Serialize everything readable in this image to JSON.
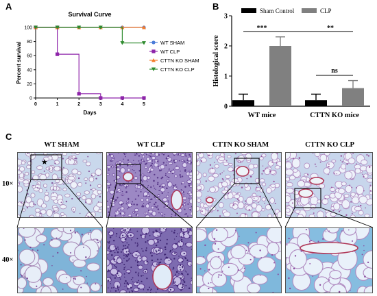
{
  "panels": {
    "a": "A",
    "b": "B",
    "c": "C"
  },
  "chart_data": [
    {
      "type": "line",
      "title": "Survival Curve",
      "xlabel": "Days",
      "ylabel": "Percent survival",
      "xlim": [
        0,
        5
      ],
      "ylim": [
        0,
        100
      ],
      "xticks": [
        "0",
        "1",
        "2",
        "3",
        "4",
        "5"
      ],
      "yticks": [
        "0",
        "20",
        "40",
        "60",
        "80",
        "100"
      ],
      "grid": false,
      "legend_position": "right",
      "step": true,
      "series": [
        {
          "name": "WT SHAM",
          "color": "#4a7bd8",
          "marker": "circle",
          "x": [
            1,
            2,
            3,
            4,
            5
          ],
          "y": [
            100,
            100,
            100,
            100,
            100
          ]
        },
        {
          "name": "WT CLP",
          "color": "#8e24aa",
          "marker": "square",
          "x": [
            1,
            1,
            2,
            3,
            4,
            5
          ],
          "y": [
            100,
            62,
            6,
            0,
            0,
            0
          ]
        },
        {
          "name": "CTTN KO SHAM",
          "color": "#f57c2a",
          "marker": "triangle-up",
          "x": [
            1,
            2,
            3,
            4,
            5
          ],
          "y": [
            100,
            100,
            100,
            100,
            100
          ]
        },
        {
          "name": "CTTN KO CLP",
          "color": "#2e8b2e",
          "marker": "triangle-down",
          "x": [
            1,
            2,
            3,
            4,
            5
          ],
          "y": [
            100,
            100,
            100,
            78,
            78
          ]
        }
      ]
    },
    {
      "type": "bar",
      "ylabel": "Histological score",
      "xlabel": "",
      "ylim": [
        0,
        3
      ],
      "yticks": [
        "0",
        "1",
        "2",
        "3"
      ],
      "categories": [
        "WT mice",
        "CTTN KO mice"
      ],
      "legend_position": "top",
      "series": [
        {
          "name": "Sham Control",
          "color": "#000000",
          "values": [
            0.2,
            0.2
          ],
          "errors": [
            0.2,
            0.2
          ]
        },
        {
          "name": "CLP",
          "color": "#808080",
          "values": [
            2.0,
            0.6
          ],
          "errors": [
            0.3,
            0.25
          ]
        }
      ],
      "annotations": [
        {
          "text": "***",
          "between": [
            "WT mice Sham Control",
            "WT mice CLP"
          ]
        },
        {
          "text": "**",
          "between": [
            "WT mice CLP",
            "CTTN KO mice CLP"
          ]
        },
        {
          "text": "ns",
          "between": [
            "CTTN KO mice Sham Control",
            "CTTN KO mice CLP"
          ]
        }
      ]
    }
  ],
  "histology": {
    "columns": [
      "WT SHAM",
      "WT CLP",
      "CTTN KO SHAM",
      "CTTN KO CLP"
    ],
    "rows": [
      "10×",
      "40×"
    ],
    "symbols": {
      "star": "★"
    }
  }
}
